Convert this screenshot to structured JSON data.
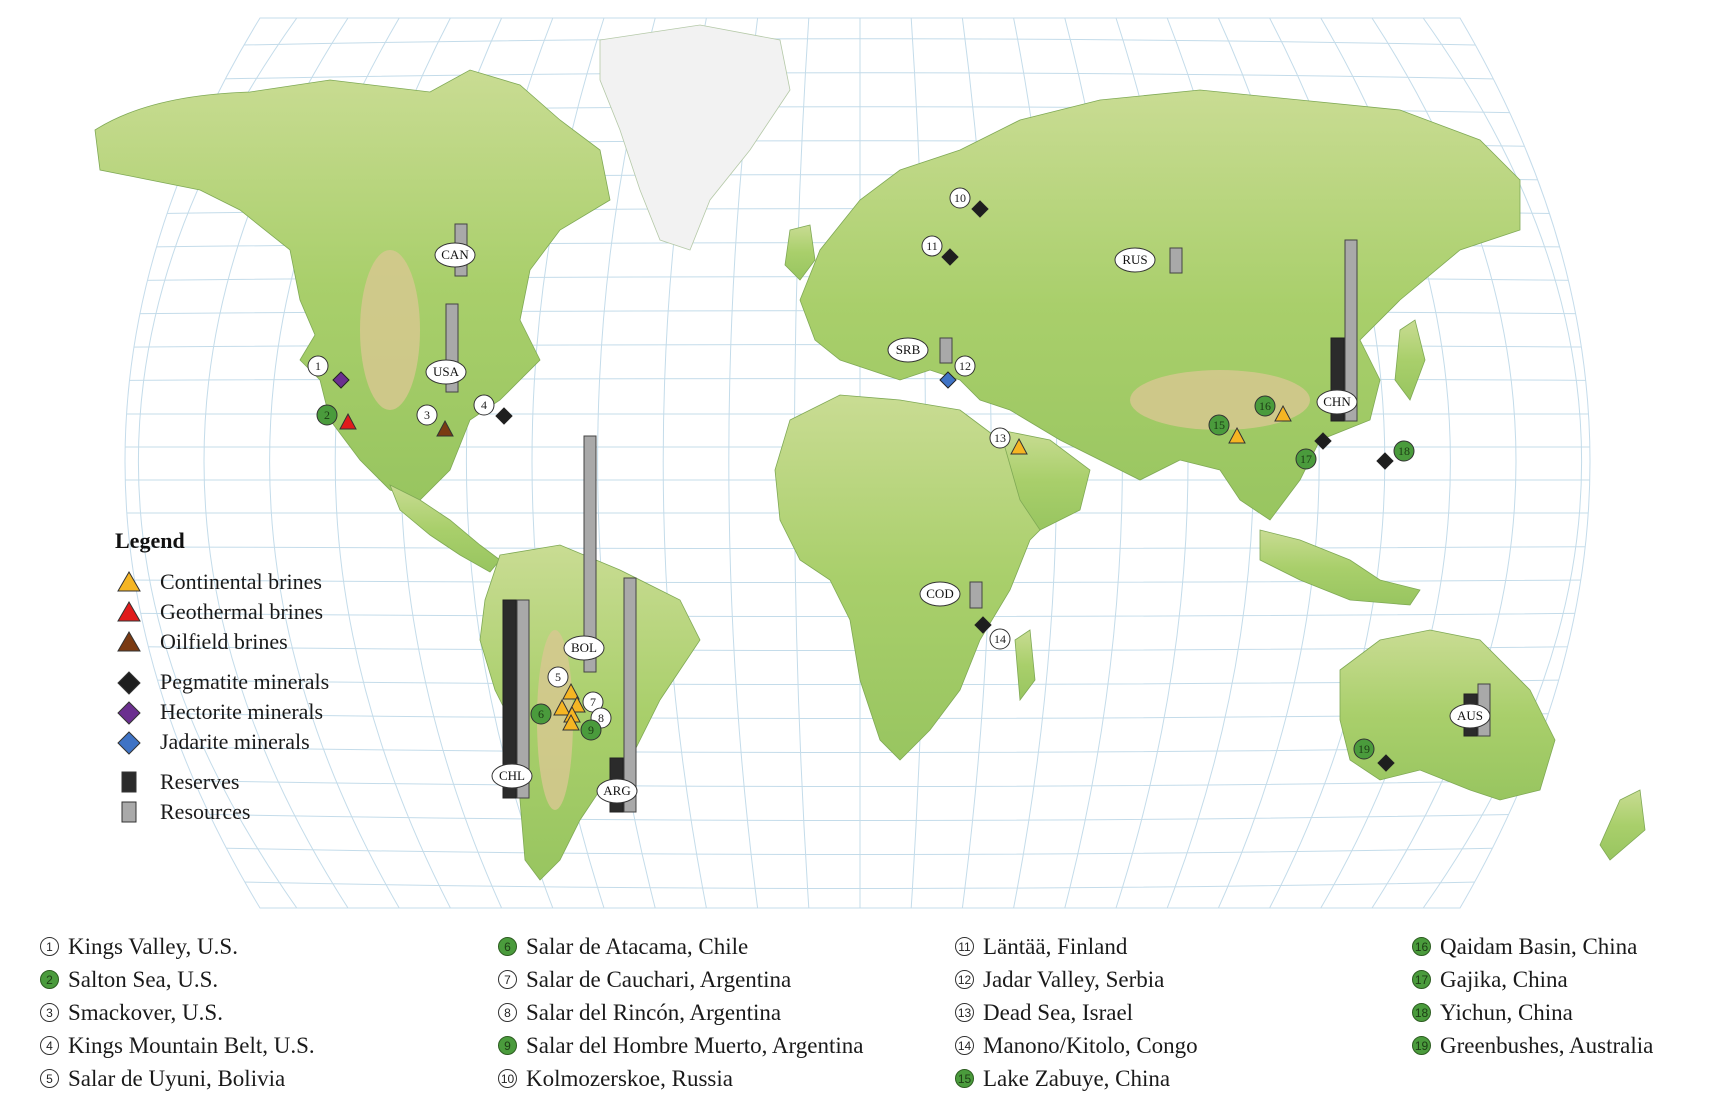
{
  "legend": {
    "title": "Legend",
    "items": [
      {
        "label": "Continental brines",
        "shape": "triangle",
        "color": "#f5b523"
      },
      {
        "label": "Geothermal brines",
        "shape": "triangle",
        "color": "#e01b1b"
      },
      {
        "label": "Oilfield  brines",
        "shape": "triangle",
        "color": "#7a3a12"
      },
      {
        "label": "Pegmatite minerals",
        "shape": "diamond",
        "color": "#1e1e1e"
      },
      {
        "label": "Hectorite minerals",
        "shape": "diamond",
        "color": "#6b2f8f"
      },
      {
        "label": "Jadarite minerals",
        "shape": "diamond",
        "color": "#3f73c5"
      },
      {
        "label": "Reserves",
        "shape": "square",
        "color": "#2b2b2b"
      },
      {
        "label": "Resources",
        "shape": "square",
        "color": "#a9a9a9"
      }
    ]
  },
  "colors": {
    "ocean": "#ffffff",
    "grid": "#b9d6e6",
    "land_low": "#a9cf6b",
    "land_high": "#d6c88f",
    "ice": "#f4f4f4",
    "reserves": "#2b2b2b",
    "resources": "#a9a9a9"
  },
  "countries": [
    {
      "code": "CAN"
    },
    {
      "code": "USA"
    },
    {
      "code": "RUS"
    },
    {
      "code": "SRB"
    },
    {
      "code": "CHN"
    },
    {
      "code": "BOL"
    },
    {
      "code": "CHL"
    },
    {
      "code": "ARG"
    },
    {
      "code": "COD"
    },
    {
      "code": "AUS"
    }
  ],
  "site_markers": [
    {
      "n": "1",
      "type": "hectorite"
    },
    {
      "n": "2",
      "type": "geothermal"
    },
    {
      "n": "3",
      "type": "oilfield"
    },
    {
      "n": "4",
      "type": "pegmatite"
    },
    {
      "n": "5",
      "type": "continental"
    },
    {
      "n": "6",
      "type": "continental"
    },
    {
      "n": "7",
      "type": "continental"
    },
    {
      "n": "8",
      "type": "continental"
    },
    {
      "n": "9",
      "type": "continental"
    },
    {
      "n": "10",
      "type": "pegmatite"
    },
    {
      "n": "11",
      "type": "pegmatite"
    },
    {
      "n": "12",
      "type": "jadarite"
    },
    {
      "n": "13",
      "type": "continental"
    },
    {
      "n": "14",
      "type": "pegmatite"
    },
    {
      "n": "15",
      "type": "continental"
    },
    {
      "n": "16",
      "type": "continental"
    },
    {
      "n": "17",
      "type": "pegmatite"
    },
    {
      "n": "18",
      "type": "pegmatite"
    },
    {
      "n": "19",
      "type": "pegmatite"
    }
  ],
  "sites": [
    {
      "n": "1",
      "name": "Kings Valley, U.S.",
      "style": "white"
    },
    {
      "n": "2",
      "name": "Salton Sea, U.S.",
      "style": "green"
    },
    {
      "n": "3",
      "name": "Smackover, U.S.",
      "style": "white"
    },
    {
      "n": "4",
      "name": "Kings Mountain Belt, U.S.",
      "style": "white"
    },
    {
      "n": "5",
      "name": "Salar de Uyuni,  Bolivia",
      "style": "white"
    },
    {
      "n": "6",
      "name": "Salar de Atacama, Chile",
      "style": "green"
    },
    {
      "n": "7",
      "name": "Salar de Cauchari, Argentina",
      "style": "white"
    },
    {
      "n": "8",
      "name": "Salar del Rincón,  Argentina",
      "style": "white"
    },
    {
      "n": "9",
      "name": "Salar del Hombre Muerto, Argentina",
      "style": "green"
    },
    {
      "n": "10",
      "name": "Kolmozerskoe, Russia",
      "style": "white"
    },
    {
      "n": "11",
      "name": "Läntää, Finland",
      "style": "white"
    },
    {
      "n": "12",
      "name": "Jadar Valley, Serbia",
      "style": "white"
    },
    {
      "n": "13",
      "name": "Dead Sea, Israel",
      "style": "white"
    },
    {
      "n": "14",
      "name": "Manono/Kitolo,  Congo",
      "style": "white"
    },
    {
      "n": "15",
      "name": "Lake Zabuye, China",
      "style": "green"
    },
    {
      "n": "16",
      "name": "Qaidam Basin, China",
      "style": "green"
    },
    {
      "n": "17",
      "name": "Gajika,  China",
      "style": "green"
    },
    {
      "n": "18",
      "name": "Yichun,  China",
      "style": "green"
    },
    {
      "n": "19",
      "name": "Greenbushes, Australia",
      "style": "green"
    }
  ]
}
